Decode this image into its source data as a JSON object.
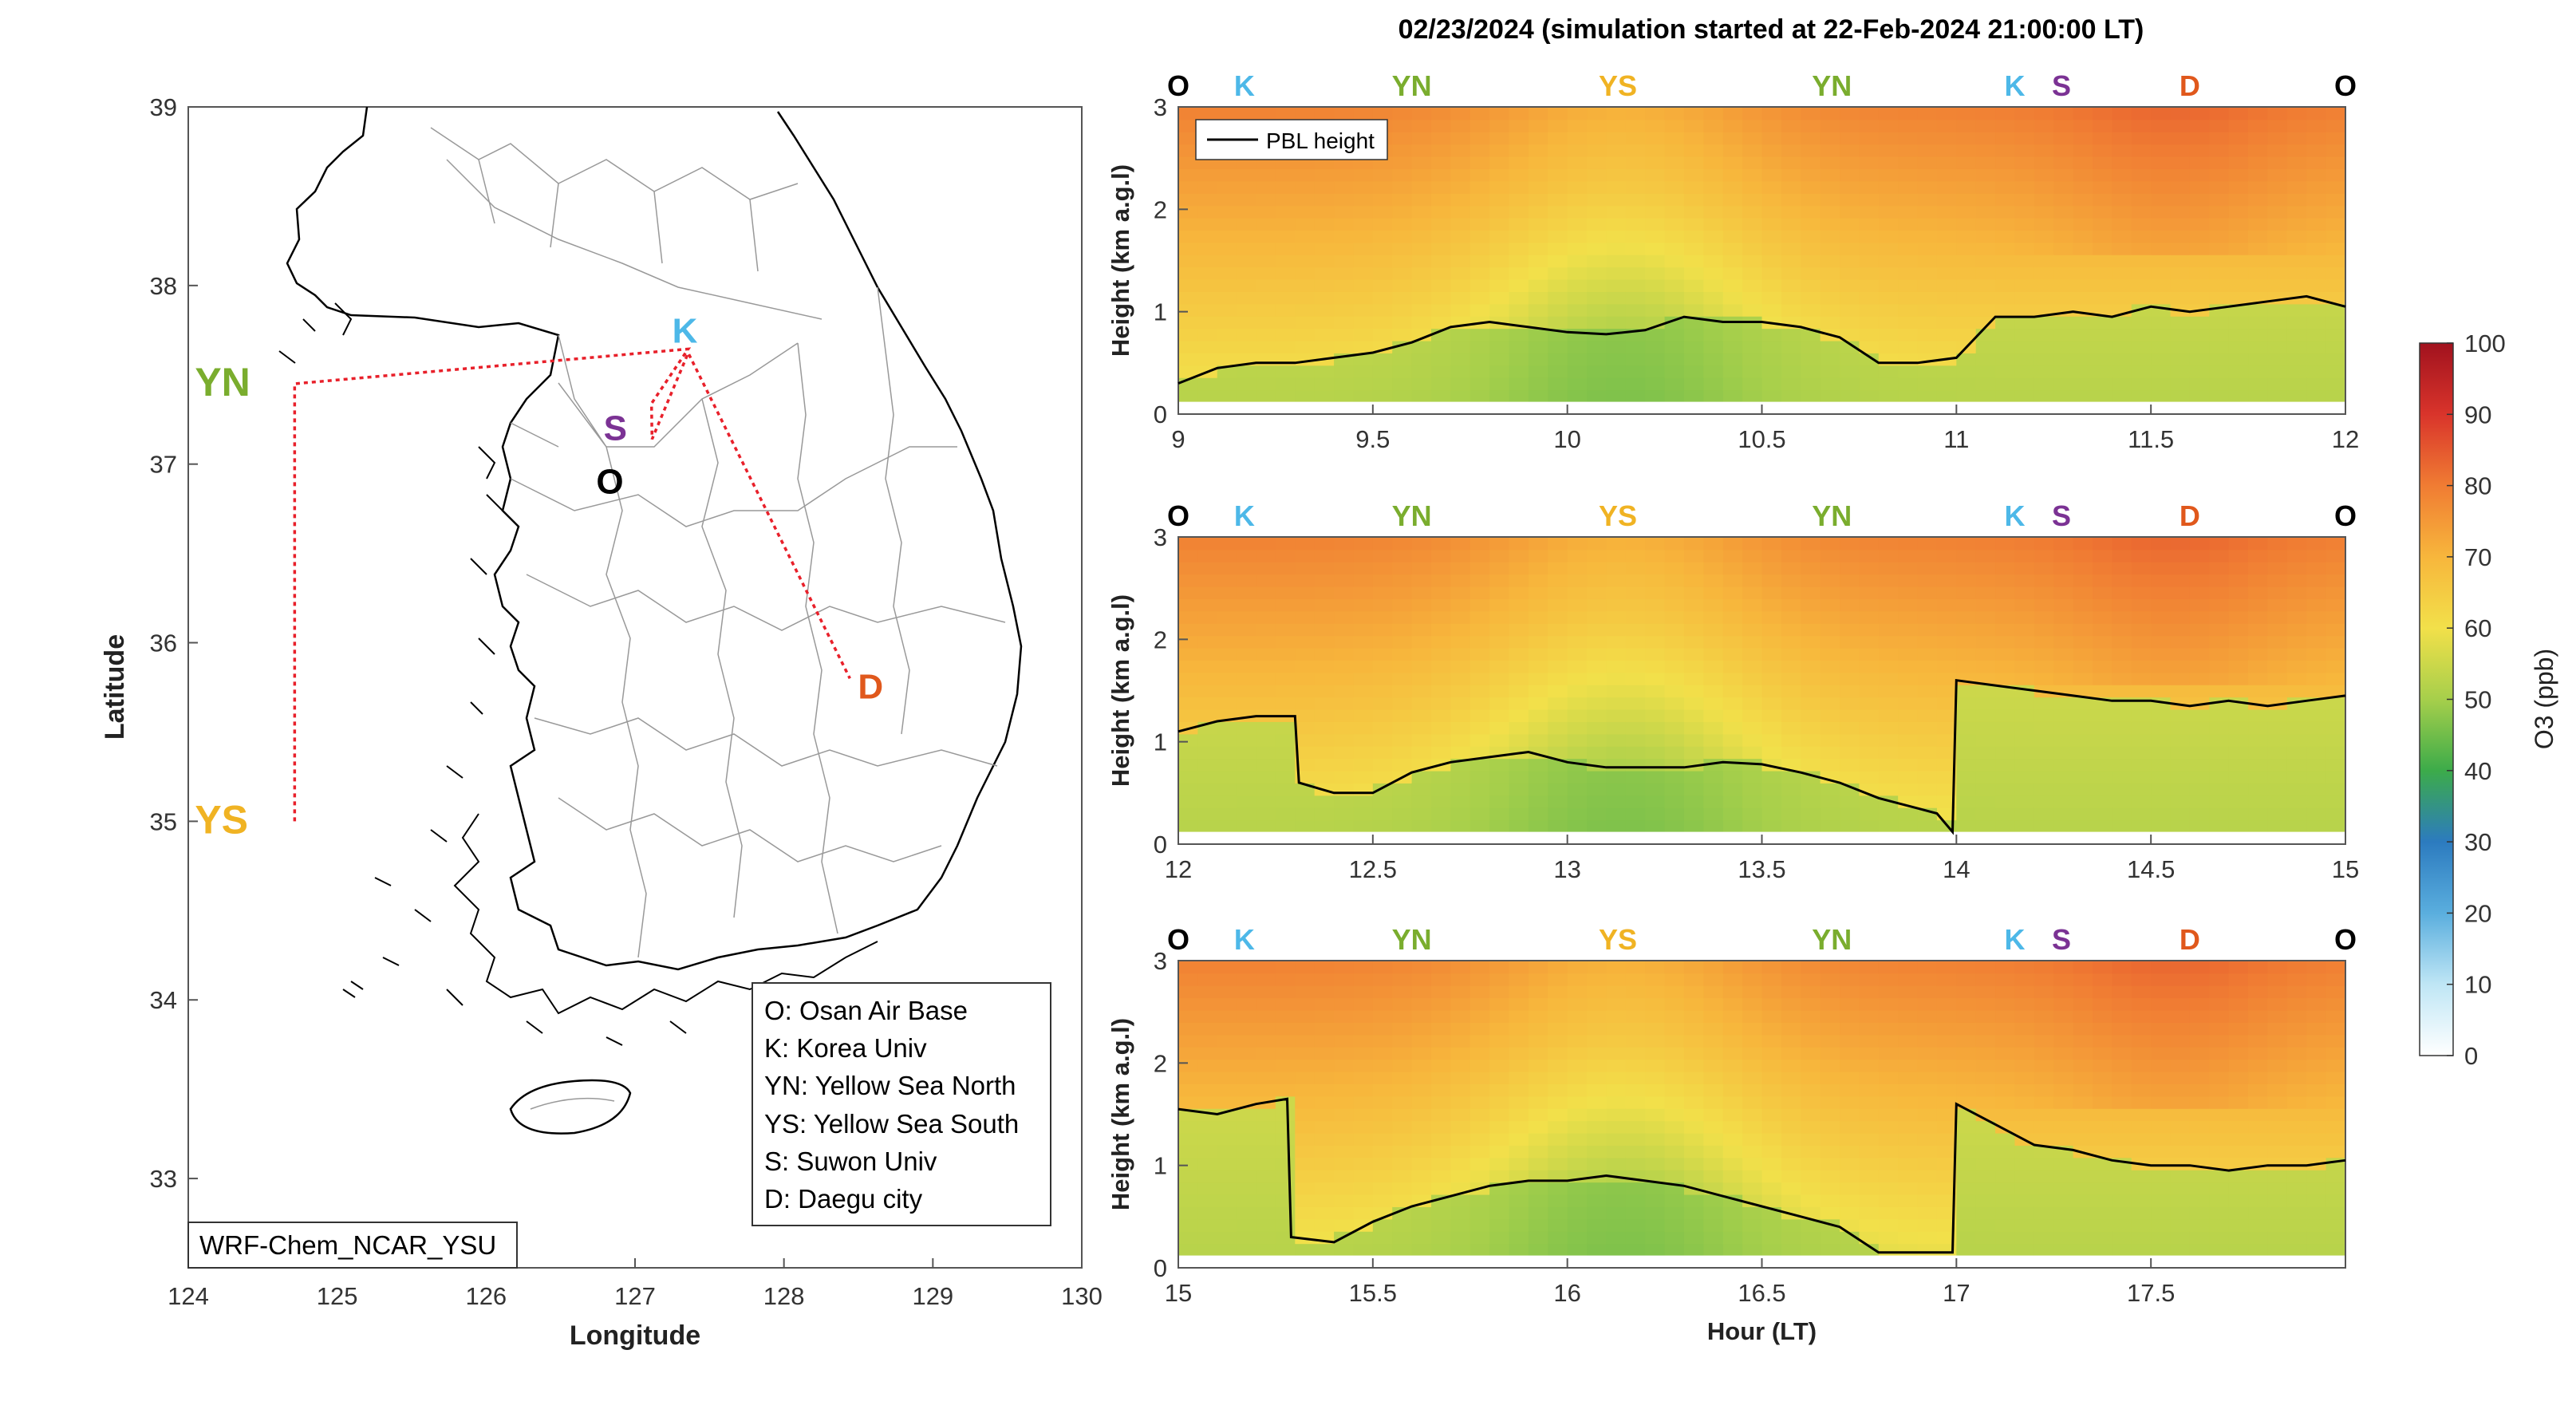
{
  "figure_title": "02/23/2024 (simulation started at 22-Feb-2024 21:00:00 LT)",
  "colors": {
    "O": "#000000",
    "K": "#4db8e8",
    "YN": "#7aad2e",
    "YS": "#f0b323",
    "S": "#7b3294",
    "D": "#e0581c",
    "route": "#e8202a",
    "pbl": "#000000"
  },
  "map": {
    "xlabel": "Longitude",
    "ylabel": "Latitude",
    "xlim": [
      124,
      130
    ],
    "ylim": [
      32.5,
      39
    ],
    "xticks": [
      "124",
      "125",
      "126",
      "127",
      "128",
      "129",
      "130"
    ],
    "yticks": [
      "33",
      "34",
      "35",
      "36",
      "37",
      "38",
      "39"
    ],
    "model_label": "WRF-Chem_NCAR_YSU",
    "sites": [
      {
        "code": "K",
        "lon": 127.25,
        "lat": 37.6
      },
      {
        "code": "S",
        "lon": 126.95,
        "lat": 37.25
      },
      {
        "code": "O",
        "lon": 126.9,
        "lat": 37.05
      },
      {
        "code": "YN",
        "lon": 124.5,
        "lat": 37.45
      },
      {
        "code": "YS",
        "lon": 124.5,
        "lat": 35.0
      },
      {
        "code": "D",
        "lon": 128.55,
        "lat": 35.8
      }
    ],
    "legend": [
      {
        "text": "O: Osan Air Base"
      },
      {
        "text": "K: Korea Univ"
      },
      {
        "text": "YN: Yellow Sea North"
      },
      {
        "text": "YS: Yellow Sea South"
      },
      {
        "text": "S: Suwon Univ"
      },
      {
        "text": "D: Daegu city"
      }
    ]
  },
  "chart_data": [
    {
      "type": "heatmap",
      "panel": 1,
      "xlim": [
        9,
        12
      ],
      "ylim": [
        0,
        3
      ],
      "xticks": [
        "9",
        "9.5",
        "10",
        "10.5",
        "11",
        "11.5",
        "12"
      ],
      "yticks": [
        "0",
        "1",
        "2",
        "3"
      ],
      "ylabel": "Height (km a.g.l)",
      "legend": "PBL height",
      "site_labels": [
        {
          "code": "O",
          "x": 9.0
        },
        {
          "code": "K",
          "x": 9.17
        },
        {
          "code": "YN",
          "x": 9.6
        },
        {
          "code": "YS",
          "x": 10.13
        },
        {
          "code": "YN",
          "x": 10.68
        },
        {
          "code": "K",
          "x": 11.15
        },
        {
          "code": "S",
          "x": 11.27
        },
        {
          "code": "D",
          "x": 11.6
        },
        {
          "code": "O",
          "x": 12.0
        }
      ],
      "pbl_height_km": {
        "x": [
          9.0,
          9.1,
          9.2,
          9.3,
          9.4,
          9.5,
          9.6,
          9.7,
          9.8,
          9.9,
          10.0,
          10.1,
          10.2,
          10.3,
          10.4,
          10.5,
          10.6,
          10.7,
          10.8,
          10.9,
          11.0,
          11.1,
          11.2,
          11.3,
          11.4,
          11.5,
          11.6,
          11.7,
          11.8,
          11.9,
          12.0
        ],
        "y": [
          0.3,
          0.45,
          0.5,
          0.5,
          0.55,
          0.6,
          0.7,
          0.85,
          0.9,
          0.85,
          0.8,
          0.78,
          0.82,
          0.95,
          0.9,
          0.9,
          0.85,
          0.75,
          0.5,
          0.5,
          0.55,
          0.95,
          0.95,
          1.0,
          0.95,
          1.05,
          1.0,
          1.05,
          1.1,
          1.15,
          1.05
        ]
      }
    },
    {
      "type": "heatmap",
      "panel": 2,
      "xlim": [
        12,
        15
      ],
      "ylim": [
        0,
        3
      ],
      "xticks": [
        "12",
        "12.5",
        "13",
        "13.5",
        "14",
        "14.5",
        "15"
      ],
      "yticks": [
        "0",
        "1",
        "2",
        "3"
      ],
      "ylabel": "Height (km a.g.l)",
      "site_labels": [
        {
          "code": "O",
          "x": 12.0
        },
        {
          "code": "K",
          "x": 12.17
        },
        {
          "code": "YN",
          "x": 12.6
        },
        {
          "code": "YS",
          "x": 13.13
        },
        {
          "code": "YN",
          "x": 13.68
        },
        {
          "code": "K",
          "x": 14.15
        },
        {
          "code": "S",
          "x": 14.27
        },
        {
          "code": "D",
          "x": 14.6
        },
        {
          "code": "O",
          "x": 15.0
        }
      ],
      "pbl_height_km": {
        "x": [
          12.0,
          12.1,
          12.2,
          12.3,
          12.31,
          12.4,
          12.5,
          12.6,
          12.7,
          12.8,
          12.9,
          13.0,
          13.1,
          13.2,
          13.3,
          13.4,
          13.5,
          13.6,
          13.7,
          13.8,
          13.9,
          13.95,
          13.99,
          14.0,
          14.1,
          14.2,
          14.3,
          14.4,
          14.5,
          14.6,
          14.7,
          14.8,
          14.9,
          15.0
        ],
        "y": [
          1.1,
          1.2,
          1.25,
          1.25,
          0.6,
          0.5,
          0.5,
          0.7,
          0.8,
          0.85,
          0.9,
          0.8,
          0.75,
          0.75,
          0.75,
          0.8,
          0.78,
          0.7,
          0.6,
          0.45,
          0.35,
          0.3,
          0.12,
          1.6,
          1.55,
          1.5,
          1.45,
          1.4,
          1.4,
          1.35,
          1.4,
          1.35,
          1.4,
          1.45
        ]
      }
    },
    {
      "type": "heatmap",
      "panel": 3,
      "xlim": [
        15,
        18
      ],
      "ylim": [
        0,
        3
      ],
      "xticks": [
        "15",
        "15.5",
        "16",
        "16.5",
        "17",
        "17.5"
      ],
      "yticks": [
        "0",
        "1",
        "2",
        "3"
      ],
      "xlabel": "Hour (LT)",
      "ylabel": "Height (km a.g.l)",
      "site_labels": [
        {
          "code": "O",
          "x": 15.0
        },
        {
          "code": "K",
          "x": 15.17
        },
        {
          "code": "YN",
          "x": 15.6
        },
        {
          "code": "YS",
          "x": 16.13
        },
        {
          "code": "YN",
          "x": 16.68
        },
        {
          "code": "K",
          "x": 17.15
        },
        {
          "code": "S",
          "x": 17.27
        },
        {
          "code": "D",
          "x": 17.6
        },
        {
          "code": "O",
          "x": 18.0
        }
      ],
      "pbl_height_km": {
        "x": [
          15.0,
          15.1,
          15.2,
          15.28,
          15.29,
          15.4,
          15.5,
          15.6,
          15.7,
          15.8,
          15.9,
          16.0,
          16.1,
          16.2,
          16.3,
          16.4,
          16.5,
          16.6,
          16.7,
          16.8,
          16.9,
          16.99,
          17.0,
          17.1,
          17.2,
          17.3,
          17.4,
          17.5,
          17.6,
          17.7,
          17.8,
          17.9,
          18.0
        ],
        "y": [
          1.55,
          1.5,
          1.6,
          1.65,
          0.3,
          0.25,
          0.45,
          0.6,
          0.7,
          0.8,
          0.85,
          0.85,
          0.9,
          0.85,
          0.8,
          0.7,
          0.6,
          0.5,
          0.4,
          0.15,
          0.15,
          0.15,
          1.6,
          1.4,
          1.2,
          1.15,
          1.05,
          1.0,
          1.0,
          0.95,
          1.0,
          1.0,
          1.05
        ]
      }
    }
  ],
  "colorbar": {
    "label": "O3 (ppb)",
    "min": 0,
    "max": 100,
    "ticks": [
      "0",
      "10",
      "20",
      "30",
      "40",
      "50",
      "60",
      "70",
      "80",
      "90",
      "100"
    ],
    "stops": [
      "#ffffff",
      "#bfe6f5",
      "#5aaede",
      "#2c7bbf",
      "#3cab4a",
      "#a6cf4b",
      "#f2e04a",
      "#f7b63c",
      "#f07c33",
      "#d9342b",
      "#a1121e"
    ]
  }
}
